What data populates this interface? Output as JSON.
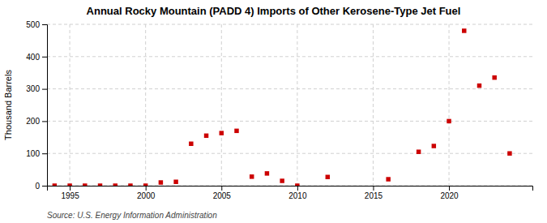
{
  "chart_data": {
    "type": "scatter",
    "title": "Annual Rocky Mountain (PADD 4) Imports of Other Kerosene-Type Jet Fuel",
    "ylabel": "Thousand Barrels",
    "annotations": [
      "Source: U.S. Energy Information Administration"
    ],
    "x": [
      1994,
      1995,
      1996,
      1997,
      1998,
      1999,
      2000,
      2001,
      2002,
      2003,
      2004,
      2005,
      2006,
      2007,
      2008,
      2009,
      2010,
      2012,
      2016,
      2018,
      2019,
      2020,
      2021,
      2022,
      2023,
      2024
    ],
    "values": [
      0,
      0,
      0,
      0,
      0,
      0,
      0,
      10,
      12,
      130,
      155,
      163,
      170,
      28,
      38,
      15,
      0,
      27,
      20,
      105,
      123,
      200,
      480,
      310,
      335,
      100
    ],
    "color": "#cc0000",
    "marker": "square",
    "xlim": [
      1993.5,
      2025.5
    ],
    "ylim": [
      0,
      500
    ],
    "xticks": [
      1995,
      2000,
      2005,
      2010,
      2015,
      2020
    ],
    "yticks": [
      0,
      100,
      200,
      300,
      400,
      500
    ],
    "grid": true
  }
}
